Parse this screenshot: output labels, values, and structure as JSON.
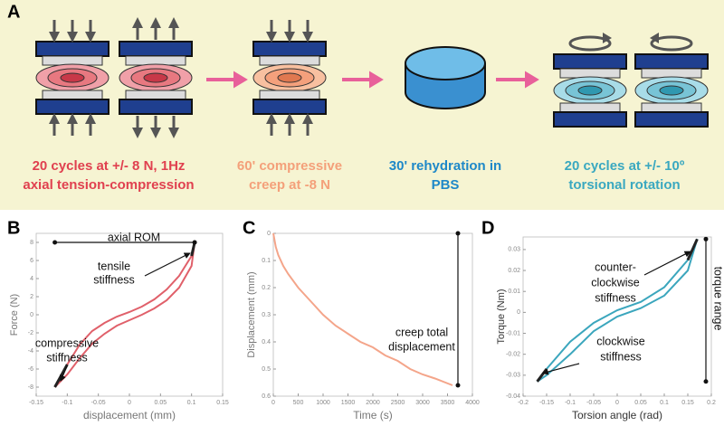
{
  "panel_a": {
    "label": "A",
    "steps": [
      {
        "caption": [
          "20 cycles at +/- 8 N, 1Hz",
          "axial tension-compression"
        ]
      },
      {
        "caption": [
          "60' compressive",
          "creep at -8 N"
        ]
      },
      {
        "caption": [
          "30' rehydration in",
          "PBS"
        ]
      },
      {
        "caption": [
          "20 cycles at +/- 10º",
          "torsional rotation"
        ]
      }
    ]
  },
  "chart_data": [
    {
      "type": "line",
      "panel_label": "B",
      "xlabel": "displacement (mm)",
      "ylabel": "Force (N)",
      "xlim": [
        -0.15,
        0.15
      ],
      "ylim": [
        -9,
        9
      ],
      "xticks": [
        -0.15,
        -0.1,
        -0.05,
        0,
        0.05,
        0.1,
        0.15
      ],
      "yticks": [
        -8,
        -6,
        -4,
        -2,
        0,
        2,
        4,
        6,
        8
      ],
      "series": [
        {
          "color": "#e0606a",
          "x": [
            -0.12,
            -0.1,
            -0.08,
            -0.06,
            -0.04,
            -0.02,
            0,
            0.02,
            0.04,
            0.06,
            0.08,
            0.1,
            0.105
          ],
          "values": [
            -8,
            -5.5,
            -3.3,
            -1.8,
            -0.9,
            -0.2,
            0.3,
            0.9,
            1.7,
            2.8,
            4.3,
            6.5,
            8
          ]
        },
        {
          "color": "#e0606a",
          "x": [
            -0.12,
            -0.1,
            -0.08,
            -0.06,
            -0.04,
            -0.02,
            0,
            0.02,
            0.04,
            0.06,
            0.08,
            0.1,
            0.105
          ],
          "values": [
            -8,
            -6.6,
            -4.8,
            -3.2,
            -2.1,
            -1.2,
            -0.6,
            0,
            0.7,
            1.6,
            3,
            5.4,
            8
          ]
        }
      ],
      "annotations": [
        [
          "axial ROM"
        ],
        [
          "tensile",
          "stiffness"
        ],
        [
          "compressive",
          "stiffness"
        ]
      ]
    },
    {
      "type": "line",
      "panel_label": "C",
      "xlabel": "Time (s)",
      "ylabel": "Displacement (mm)",
      "xlim": [
        0,
        4000
      ],
      "ylim": [
        0,
        0.6
      ],
      "y_inverted": true,
      "xticks": [
        0,
        500,
        1000,
        1500,
        2000,
        2500,
        3000,
        3500,
        4000
      ],
      "yticks": [
        0,
        0.1,
        0.2,
        0.3,
        0.4,
        0.5,
        0.6
      ],
      "series": [
        {
          "color": "#f4a58a",
          "x": [
            0,
            50,
            100,
            200,
            300,
            500,
            750,
            1000,
            1250,
            1500,
            1750,
            2000,
            2250,
            2500,
            2750,
            3000,
            3250,
            3600
          ],
          "values": [
            0,
            0.05,
            0.08,
            0.12,
            0.15,
            0.2,
            0.25,
            0.3,
            0.34,
            0.37,
            0.4,
            0.42,
            0.45,
            0.47,
            0.5,
            0.52,
            0.535,
            0.56
          ]
        }
      ],
      "annotations": [
        [
          "creep total",
          "displacement"
        ]
      ]
    },
    {
      "type": "line",
      "panel_label": "D",
      "xlabel": "Torsion angle (rad)",
      "ylabel": "Torque (Nm)",
      "xlim": [
        -0.2,
        0.2
      ],
      "ylim": [
        -0.04,
        0.036
      ],
      "xticks": [
        -0.2,
        -0.15,
        -0.1,
        -0.05,
        0,
        0.05,
        0.1,
        0.15,
        0.2
      ],
      "yticks": [
        -0.04,
        -0.03,
        -0.02,
        -0.01,
        0,
        0.01,
        0.02,
        0.03
      ],
      "series": [
        {
          "color": "#3ba6bd",
          "x": [
            -0.17,
            -0.15,
            -0.1,
            -0.05,
            0,
            0.05,
            0.1,
            0.15,
            0.17
          ],
          "values": [
            -0.033,
            -0.027,
            -0.014,
            -0.005,
            0.001,
            0.005,
            0.012,
            0.025,
            0.035
          ]
        },
        {
          "color": "#3ba6bd",
          "x": [
            -0.17,
            -0.15,
            -0.1,
            -0.05,
            0,
            0.05,
            0.1,
            0.15,
            0.17
          ],
          "values": [
            -0.033,
            -0.03,
            -0.02,
            -0.009,
            -0.002,
            0.002,
            0.008,
            0.02,
            0.035
          ]
        }
      ],
      "annotations": [
        [
          "counter-",
          "clockwise",
          "stiffness"
        ],
        [
          "clockwise",
          "stiffness"
        ],
        [
          "torque range"
        ]
      ]
    }
  ]
}
